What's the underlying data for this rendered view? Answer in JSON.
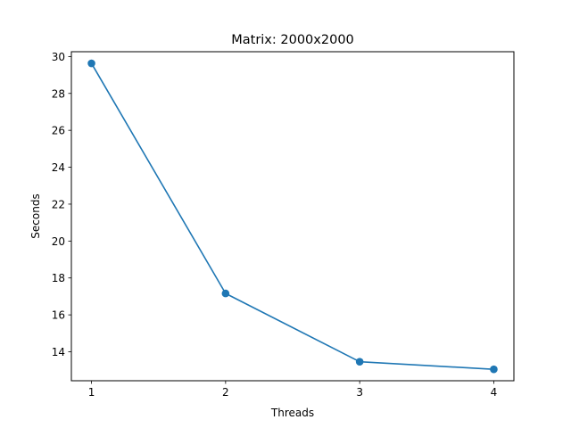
{
  "chart_data": {
    "type": "line",
    "title": "Matrix: 2000x2000",
    "xlabel": "Threads",
    "ylabel": "Seconds",
    "x": [
      1,
      2,
      3,
      4
    ],
    "series": [
      {
        "values": [
          29.63,
          17.16,
          13.46,
          13.05
        ],
        "color": "#1f77b4",
        "marker": "circle"
      }
    ],
    "xticks": [
      1,
      2,
      3,
      4
    ],
    "yticks": [
      14,
      16,
      18,
      20,
      22,
      24,
      26,
      28,
      30
    ],
    "xlim": [
      0.85,
      4.15
    ],
    "ylim": [
      12.43,
      30.26
    ],
    "grid": false
  }
}
